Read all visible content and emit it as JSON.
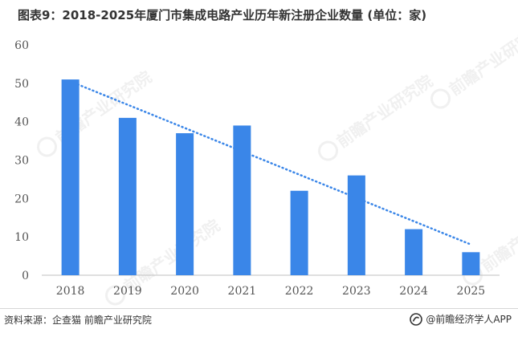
{
  "header": {
    "title": "图表9：2018-2025年厦门市集成电路产业历年新注册企业数量 (单位：家)"
  },
  "footer": {
    "source": "资料来源：企查猫 前瞻产业研究院",
    "brand": "@前瞻经济学人APP"
  },
  "watermark": {
    "text": "前瞻产业研究院",
    "icon": "qianzhan-logo-icon"
  },
  "colors": {
    "bar": "#3a86e8",
    "trendline": "#3a86e8",
    "axis_text": "#555555",
    "axis_line": "#bfbfbf"
  },
  "chart_data": {
    "type": "bar",
    "categories": [
      "2018",
      "2019",
      "2020",
      "2021",
      "2022",
      "2023",
      "2024",
      "2025"
    ],
    "values": [
      51,
      41,
      37,
      39,
      22,
      26,
      12,
      6
    ],
    "ylim": [
      0,
      60
    ],
    "yticks": [
      0,
      10,
      20,
      30,
      40,
      50,
      60
    ],
    "grid": false,
    "legend": "none",
    "trendline": {
      "type": "linear",
      "style": "dotted"
    }
  }
}
